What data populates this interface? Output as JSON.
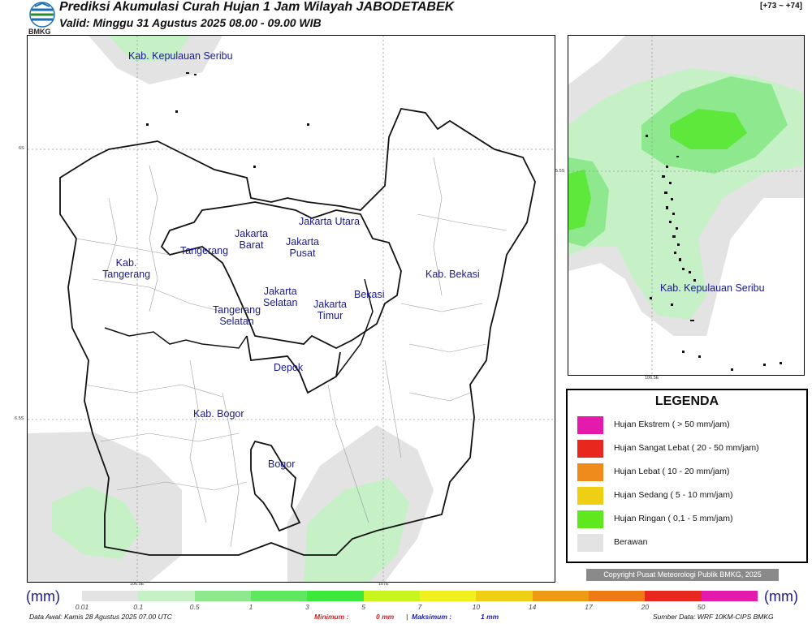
{
  "header": {
    "title": "Prediksi Akumulasi Curah Hujan 1 Jam Wilayah JABODETABEK",
    "valid": "Valid: Minggu 31 Agustus 2025 08.00 - 09.00 WIB",
    "tag": "[+73 ~ +74]",
    "logo_text": "BMKG"
  },
  "main_map": {
    "labels": [
      "Kab. Kepulauan Seribu",
      "Jakarta Utara",
      "Jakarta\nBarat",
      "Jakarta\nPusat",
      "Tangerang",
      "Kab.\nTangerang",
      "Kab. Bekasi",
      "Jakarta\nSelatan",
      "Bekasi",
      "Jakarta\nTimur",
      "Tangerang\nSelatan",
      "Depok",
      "Kab. Bogor",
      "Bogor"
    ],
    "ticks": {
      "lat_top": "6S",
      "lat_bottom": "6.5S",
      "lon_left": "106.5E",
      "lon_right": "107E"
    }
  },
  "inset_map": {
    "label": "Kab. Kepulauan Seribu",
    "ticks": {
      "lat": "5.5S",
      "lon": "106.5E"
    }
  },
  "legend": {
    "title": "LEGENDA",
    "items": [
      {
        "label": "Hujan Ekstrem ( > 50 mm/jam)",
        "color": "#e41aac"
      },
      {
        "label": "Hujan Sangat Lebat ( 20 - 50 mm/jam)",
        "color": "#e8281e"
      },
      {
        "label": "Hujan Lebat ( 10 - 20 mm/jam)",
        "color": "#ef8a1c"
      },
      {
        "label": "Hujan Sedang ( 5 - 10 mm/jam)",
        "color": "#efcf14"
      },
      {
        "label": "Hujan Ringan ( 0,1 - 5 mm/jam)",
        "color": "#5fe81e"
      },
      {
        "label": "Berawan",
        "color": "#e3e3e3"
      }
    ]
  },
  "copyright": "Copyright Pusat Meteorologi Publik BMKG, 2025",
  "scale": {
    "unit": "(mm)",
    "labels": [
      "0.01",
      "0.1",
      "0.5",
      "1",
      "3",
      "5",
      "7",
      "10",
      "14",
      "17",
      "20",
      "50"
    ],
    "colors": [
      "#e3e3e3",
      "#c6f0c6",
      "#8ee88e",
      "#5fe85f",
      "#3ce83c",
      "#c8f51e",
      "#f0f01e",
      "#efcf14",
      "#ef9a14",
      "#ef7a14",
      "#e8281e",
      "#e41aac"
    ]
  },
  "footer": {
    "data_awal": "Data Awal: Kamis 28 Agustus 2025 07.00 UTC",
    "min_label": "Minimum :",
    "min_value": "0 mm",
    "max_label": "Maksimum :",
    "max_value": "1 mm",
    "source": "Sumber Data: WRF 10KM-CIPS BMKG"
  }
}
